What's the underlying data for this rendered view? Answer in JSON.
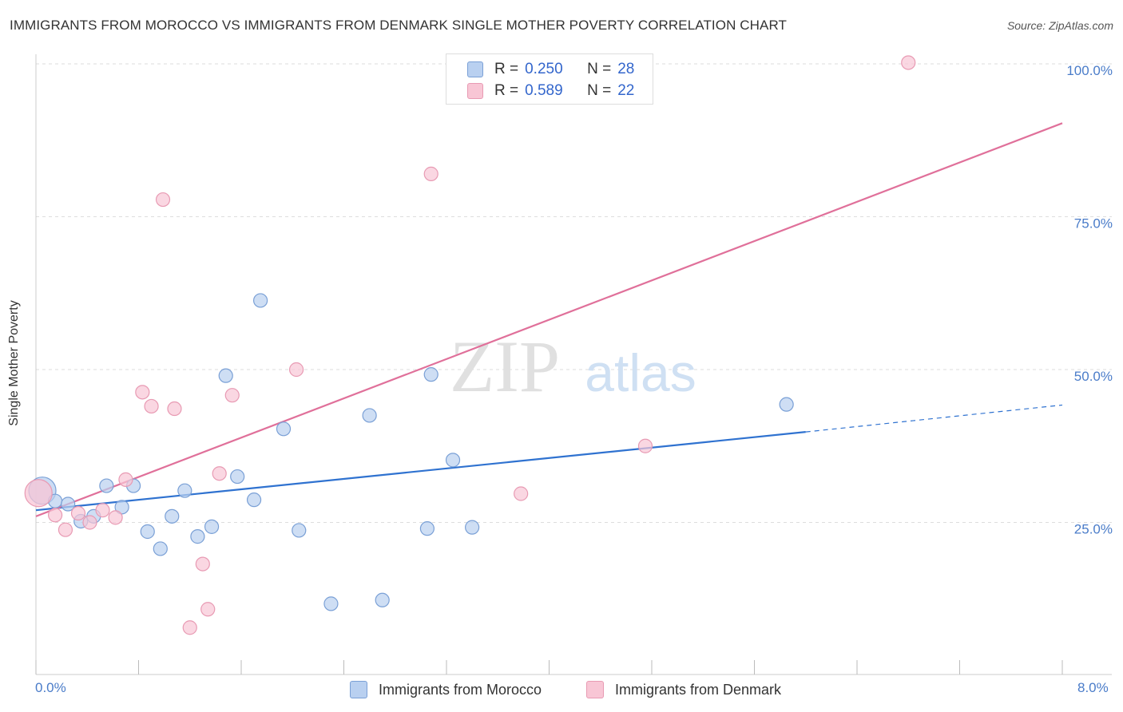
{
  "title": "IMMIGRANTS FROM MOROCCO VS IMMIGRANTS FROM DENMARK SINGLE MOTHER POVERTY CORRELATION CHART",
  "source": "Source: ZipAtlas.com",
  "colors": {
    "morocco_fill": "#b9d0f0",
    "morocco_stroke": "#7aa0d6",
    "morocco_line": "#2f72d0",
    "denmark_fill": "#f8c6d5",
    "denmark_stroke": "#e89ab3",
    "denmark_line": "#e0709a",
    "tick_text": "#4a7cc9",
    "grid": "#dddddd"
  },
  "legend": {
    "r_label": "R =",
    "n_label": "N =",
    "series": [
      {
        "r": "0.250",
        "n": "28"
      },
      {
        "r": "0.589",
        "n": "22"
      }
    ]
  },
  "watermark": {
    "zip": "ZIP",
    "atlas": "atlas"
  },
  "chart_data": {
    "type": "scatter",
    "title": "IMMIGRANTS FROM MOROCCO VS IMMIGRANTS FROM DENMARK SINGLE MOTHER POVERTY CORRELATION CHART",
    "xlabel": "",
    "ylabel": "Single Mother Poverty",
    "xlim": [
      0,
      8
    ],
    "ylim": [
      0,
      100
    ],
    "x_tick_labels": [
      "0.0%",
      "8.0%"
    ],
    "y_ticks": [
      25,
      50,
      75,
      100
    ],
    "y_tick_labels": [
      "25.0%",
      "50.0%",
      "75.0%",
      "100.0%"
    ],
    "grid": true,
    "series": [
      {
        "name": "Immigrants from Morocco",
        "r": 0.25,
        "n": 28,
        "trend": {
          "x": [
            0,
            6
          ],
          "y": [
            27.0,
            39.8
          ],
          "dashed_to_x": 8,
          "dashed_to_y": 44.2
        },
        "points": [
          {
            "x": 0.05,
            "y": 30.2,
            "big": true
          },
          {
            "x": 0.15,
            "y": 28.5
          },
          {
            "x": 0.25,
            "y": 28.0
          },
          {
            "x": 0.35,
            "y": 25.2
          },
          {
            "x": 0.45,
            "y": 26.0
          },
          {
            "x": 0.55,
            "y": 31.0
          },
          {
            "x": 0.67,
            "y": 27.5
          },
          {
            "x": 0.76,
            "y": 31.0
          },
          {
            "x": 0.87,
            "y": 23.5
          },
          {
            "x": 0.97,
            "y": 20.7
          },
          {
            "x": 1.06,
            "y": 26.0
          },
          {
            "x": 1.16,
            "y": 30.2
          },
          {
            "x": 1.26,
            "y": 22.7
          },
          {
            "x": 1.37,
            "y": 24.3
          },
          {
            "x": 1.48,
            "y": 49.0
          },
          {
            "x": 1.57,
            "y": 32.5
          },
          {
            "x": 1.7,
            "y": 28.7
          },
          {
            "x": 1.75,
            "y": 61.3
          },
          {
            "x": 1.93,
            "y": 40.3
          },
          {
            "x": 2.05,
            "y": 23.7
          },
          {
            "x": 2.3,
            "y": 11.7
          },
          {
            "x": 2.6,
            "y": 42.5
          },
          {
            "x": 2.7,
            "y": 12.3
          },
          {
            "x": 3.05,
            "y": 24.0
          },
          {
            "x": 3.08,
            "y": 49.2
          },
          {
            "x": 3.25,
            "y": 35.2
          },
          {
            "x": 3.4,
            "y": 24.2
          },
          {
            "x": 5.85,
            "y": 44.3
          }
        ]
      },
      {
        "name": "Immigrants from Denmark",
        "r": 0.589,
        "n": 22,
        "trend": {
          "x": [
            0,
            8
          ],
          "y": [
            26.0,
            90.3
          ]
        },
        "points": [
          {
            "x": 0.02,
            "y": 29.8,
            "big": true
          },
          {
            "x": 0.15,
            "y": 26.2
          },
          {
            "x": 0.23,
            "y": 23.8
          },
          {
            "x": 0.33,
            "y": 26.5
          },
          {
            "x": 0.42,
            "y": 25.0
          },
          {
            "x": 0.52,
            "y": 27.0
          },
          {
            "x": 0.62,
            "y": 25.8
          },
          {
            "x": 0.7,
            "y": 32.0
          },
          {
            "x": 0.83,
            "y": 46.3
          },
          {
            "x": 0.9,
            "y": 44.0
          },
          {
            "x": 0.99,
            "y": 77.8
          },
          {
            "x": 1.08,
            "y": 43.6
          },
          {
            "x": 1.2,
            "y": 7.8
          },
          {
            "x": 1.3,
            "y": 18.2
          },
          {
            "x": 1.34,
            "y": 10.8
          },
          {
            "x": 1.43,
            "y": 33.0
          },
          {
            "x": 1.53,
            "y": 45.8
          },
          {
            "x": 2.03,
            "y": 50.0
          },
          {
            "x": 3.08,
            "y": 82.0
          },
          {
            "x": 3.78,
            "y": 29.7
          },
          {
            "x": 4.75,
            "y": 37.5
          },
          {
            "x": 6.8,
            "y": 100.2
          }
        ]
      }
    ]
  }
}
